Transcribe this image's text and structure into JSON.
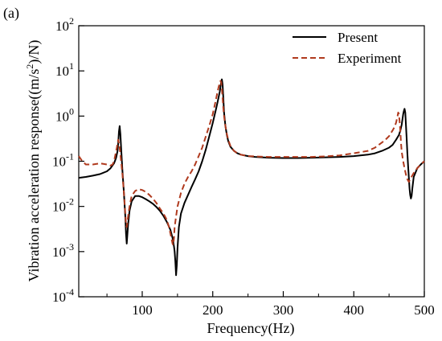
{
  "chart_data": {
    "type": "line",
    "panel_label": "(a)",
    "xlabel": "Frequency(Hz)",
    "ylabel_parts": [
      "Vibration acceleration response((m/s",
      "2",
      ")/N)"
    ],
    "xlim": [
      10,
      500
    ],
    "ylim": [
      0.0001,
      100
    ],
    "yscale": "log",
    "x_ticks": [
      100,
      200,
      300,
      400,
      500
    ],
    "y_ticks": [
      {
        "value": 0.0001,
        "base": "10",
        "exp": "-4"
      },
      {
        "value": 0.001,
        "base": "10",
        "exp": "-3"
      },
      {
        "value": 0.01,
        "base": "10",
        "exp": "-2"
      },
      {
        "value": 0.1,
        "base": "10",
        "exp": "-1"
      },
      {
        "value": 1,
        "base": "10",
        "exp": "0"
      },
      {
        "value": 10,
        "base": "10",
        "exp": "1"
      },
      {
        "value": 100,
        "base": "10",
        "exp": "2"
      }
    ],
    "grid": false,
    "legend_position": "top-right",
    "series": [
      {
        "name": "Present",
        "color": "#000000",
        "style": "solid",
        "x": [
          10,
          20,
          30,
          40,
          50,
          55,
          60,
          63,
          65,
          66,
          67,
          68,
          69,
          70,
          72,
          74,
          76,
          77,
          78,
          80,
          82,
          85,
          90,
          95,
          100,
          105,
          110,
          115,
          120,
          125,
          130,
          135,
          140,
          143,
          145,
          146,
          147,
          148,
          149,
          150,
          152,
          155,
          160,
          165,
          170,
          175,
          180,
          185,
          190,
          195,
          200,
          205,
          208,
          210,
          211,
          212,
          213,
          214,
          215,
          216,
          218,
          220,
          222,
          225,
          230,
          235,
          240,
          250,
          260,
          280,
          300,
          320,
          340,
          360,
          380,
          400,
          420,
          430,
          440,
          450,
          455,
          460,
          464,
          466,
          468,
          469,
          470,
          471,
          472,
          473,
          474,
          475,
          476,
          477,
          478,
          479,
          480,
          481,
          482,
          483,
          485,
          490,
          495,
          500
        ],
        "y": [
          0.043,
          0.045,
          0.048,
          0.052,
          0.06,
          0.07,
          0.09,
          0.12,
          0.17,
          0.25,
          0.45,
          0.6,
          0.4,
          0.2,
          0.06,
          0.02,
          0.006,
          0.0025,
          0.0015,
          0.004,
          0.008,
          0.013,
          0.017,
          0.017,
          0.016,
          0.0145,
          0.013,
          0.0115,
          0.0098,
          0.008,
          0.0062,
          0.0045,
          0.003,
          0.002,
          0.0013,
          0.001,
          0.0006,
          0.0003,
          0.0005,
          0.0012,
          0.0035,
          0.007,
          0.012,
          0.018,
          0.027,
          0.04,
          0.06,
          0.1,
          0.18,
          0.35,
          0.7,
          1.5,
          2.5,
          3.5,
          4.5,
          5.8,
          6.5,
          5,
          2.5,
          1.2,
          0.6,
          0.38,
          0.28,
          0.21,
          0.17,
          0.15,
          0.14,
          0.13,
          0.125,
          0.12,
          0.118,
          0.118,
          0.12,
          0.122,
          0.125,
          0.13,
          0.14,
          0.15,
          0.17,
          0.2,
          0.23,
          0.3,
          0.38,
          0.48,
          0.65,
          0.85,
          1.1,
          1.3,
          1.45,
          1.2,
          0.6,
          0.3,
          0.15,
          0.08,
          0.045,
          0.025,
          0.018,
          0.015,
          0.017,
          0.025,
          0.045,
          0.07,
          0.085,
          0.1
        ]
      },
      {
        "name": "Experiment",
        "color": "#b03a1e",
        "style": "dashed",
        "x": [
          10,
          15,
          20,
          30,
          40,
          50,
          55,
          58,
          60,
          62,
          64,
          65,
          66,
          67,
          68,
          70,
          72,
          74,
          76,
          77,
          78,
          80,
          82,
          85,
          90,
          95,
          100,
          105,
          110,
          115,
          120,
          125,
          130,
          135,
          138,
          140,
          142,
          143,
          144,
          145,
          146,
          148,
          150,
          155,
          160,
          165,
          170,
          175,
          180,
          185,
          190,
          195,
          200,
          203,
          206,
          208,
          210,
          211,
          212,
          213,
          214,
          215,
          216,
          218,
          220,
          222,
          225,
          230,
          235,
          240,
          250,
          260,
          280,
          300,
          320,
          340,
          360,
          380,
          400,
          420,
          430,
          440,
          445,
          450,
          455,
          458,
          460,
          461,
          462,
          463,
          464,
          465,
          466,
          467,
          468,
          470,
          472,
          474,
          476,
          478,
          480,
          485,
          490,
          495,
          500
        ],
        "y": [
          0.13,
          0.1,
          0.085,
          0.085,
          0.09,
          0.085,
          0.08,
          0.085,
          0.1,
          0.14,
          0.2,
          0.25,
          0.3,
          0.25,
          0.2,
          0.1,
          0.05,
          0.02,
          0.007,
          0.004,
          0.0035,
          0.006,
          0.01,
          0.017,
          0.022,
          0.024,
          0.023,
          0.021,
          0.018,
          0.015,
          0.012,
          0.009,
          0.007,
          0.005,
          0.0035,
          0.0025,
          0.0018,
          0.0015,
          0.0014,
          0.002,
          0.0035,
          0.006,
          0.01,
          0.02,
          0.032,
          0.045,
          0.06,
          0.085,
          0.13,
          0.2,
          0.35,
          0.6,
          1.1,
          1.8,
          3,
          4.2,
          5.5,
          6,
          5.5,
          4,
          2.5,
          1.5,
          1,
          0.6,
          0.4,
          0.3,
          0.22,
          0.17,
          0.15,
          0.14,
          0.13,
          0.128,
          0.125,
          0.125,
          0.125,
          0.125,
          0.128,
          0.135,
          0.15,
          0.17,
          0.2,
          0.26,
          0.3,
          0.36,
          0.48,
          0.58,
          0.72,
          0.85,
          1,
          1.2,
          1.1,
          0.75,
          0.45,
          0.25,
          0.16,
          0.1,
          0.07,
          0.05,
          0.04,
          0.035,
          0.04,
          0.055,
          0.07,
          0.085,
          0.1
        ]
      }
    ]
  }
}
